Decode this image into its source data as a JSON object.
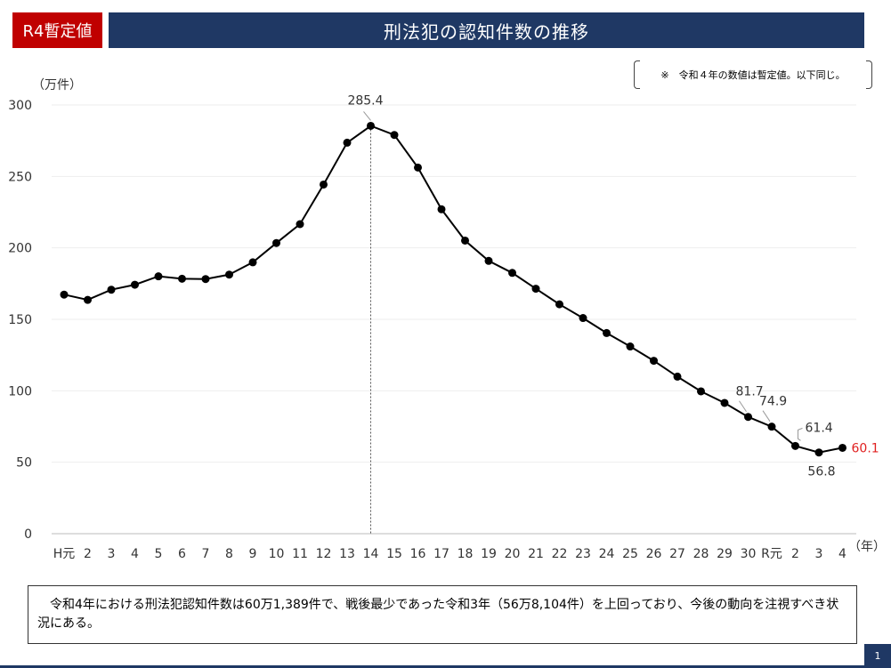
{
  "header": {
    "badge": "R4暫定値",
    "title": "刑法犯の認知件数の推移"
  },
  "note": "※　令和４年の数値は暫定値。以下同じ。",
  "summary": "令和4年における刑法犯認知件数は60万1,389件で、戦後最少であった令和3年（56万8,104件）を上回っており、今後の動向を注視すべき状況にある。",
  "page_number": "1",
  "colors": {
    "badge": "#c00000",
    "title_bar": "#1f3864",
    "line": "#000000",
    "highlight_label": "#e02020"
  },
  "chart_data": {
    "type": "line",
    "title": "刑法犯の認知件数の推移",
    "ylabel": "（万件）",
    "xlabel": "（年）",
    "ylim": [
      0,
      300
    ],
    "yticks": [
      0,
      50,
      100,
      150,
      200,
      250,
      300
    ],
    "grid": true,
    "categories": [
      "H元",
      "2",
      "3",
      "4",
      "5",
      "6",
      "7",
      "8",
      "9",
      "10",
      "11",
      "12",
      "13",
      "14",
      "15",
      "16",
      "17",
      "18",
      "19",
      "20",
      "21",
      "22",
      "23",
      "24",
      "25",
      "26",
      "27",
      "28",
      "29",
      "30",
      "R元",
      "2",
      "3",
      "4"
    ],
    "series": [
      {
        "values": [
          167.3,
          163.6,
          170.7,
          174.2,
          180.1,
          178.4,
          178.2,
          181.3,
          189.9,
          203.4,
          216.6,
          244.3,
          273.6,
          285.4,
          279.0,
          256.2,
          227.0,
          205.1,
          190.9,
          182.5,
          171.4,
          160.5,
          150.9,
          140.4,
          131.0,
          121.0,
          109.9,
          99.6,
          91.5,
          81.7,
          74.9,
          61.4,
          56.8,
          60.1
        ]
      }
    ],
    "annotations": [
      {
        "label": "285.4",
        "index": 13,
        "style": "leader",
        "color": "#333333"
      },
      {
        "label": "81.7",
        "index": 29,
        "style": "leader",
        "color": "#333333"
      },
      {
        "label": "74.9",
        "index": 30,
        "style": "leader",
        "color": "#333333"
      },
      {
        "label": "61.4",
        "index": 31,
        "style": "bracket",
        "color": "#333333"
      },
      {
        "label": "56.8",
        "index": 32,
        "style": "below",
        "color": "#333333"
      },
      {
        "label": "60.1",
        "index": 33,
        "style": "right",
        "color": "#e02020"
      }
    ],
    "peak_marker_index": 13
  }
}
